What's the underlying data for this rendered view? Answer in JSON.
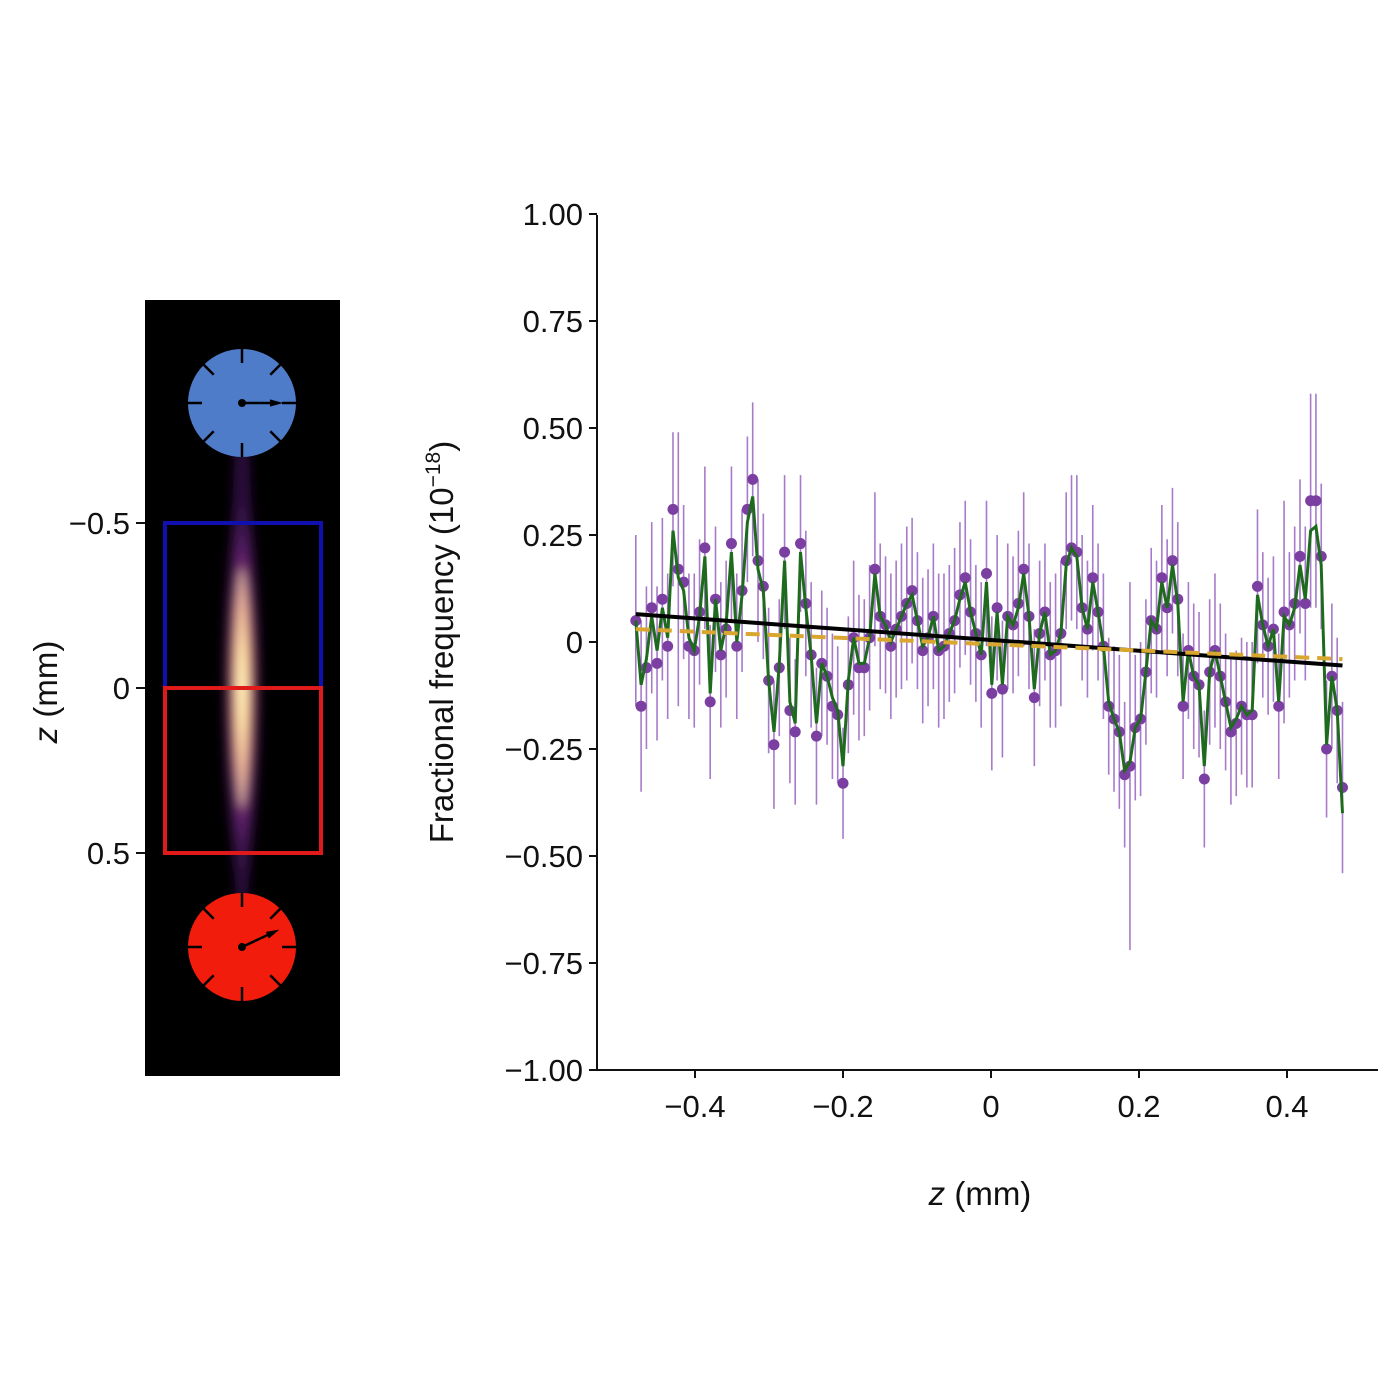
{
  "colors": {
    "points": "#7a3fa0",
    "errorbars": "#a77bc9",
    "smooth": "#1e6b1e",
    "fit": "#000000",
    "dashed": "#d9a730",
    "upper_box": "#1010b0",
    "lower_box": "#e01a1a",
    "upper_clock": "#4f7cc9",
    "lower_clock": "#f21c0c",
    "image_bg": "#000000"
  },
  "left_panel": {
    "ylabel_var": "z",
    "ylabel_unit": " (mm)",
    "ticks": [
      "−0.5",
      "0",
      "0.5"
    ],
    "tick_values": [
      -0.5,
      0,
      0.5
    ],
    "upper_box_range": [
      -0.5,
      0
    ],
    "lower_box_range": [
      0,
      0.5
    ],
    "icons": [
      "upper-clock-icon",
      "lower-clock-icon"
    ]
  },
  "chart_data": {
    "type": "scatter",
    "xlabel_var": "z",
    "xlabel_unit": " (mm)",
    "ylabel_main": "Fractional frequency (10",
    "ylabel_sup": "−18",
    "ylabel_close": ")",
    "xlim": [
      -0.52,
      0.52
    ],
    "ylim": [
      -1.0,
      1.0
    ],
    "xticks": [
      -0.4,
      -0.2,
      0,
      0.2,
      0.4
    ],
    "xtick_labels": [
      "−0.4",
      "−0.2",
      "0",
      "0.2",
      "0.4"
    ],
    "yticks": [
      1.0,
      0.75,
      0.5,
      0.25,
      0,
      -0.25,
      -0.5,
      -0.75,
      -1.0
    ],
    "ytick_labels": [
      "1.00",
      "0.75",
      "0.50",
      "0.25",
      "0",
      "−0.25",
      "−0.50",
      "−0.75",
      "−1.00"
    ],
    "grid": false,
    "x_range": [
      -0.48,
      0.475
    ],
    "y": [
      0.05,
      -0.15,
      -0.06,
      0.08,
      -0.05,
      0.1,
      -0.01,
      0.31,
      0.17,
      0.14,
      -0.01,
      -0.02,
      0.07,
      0.22,
      -0.14,
      0.1,
      -0.03,
      0.03,
      0.23,
      -0.01,
      0.12,
      0.31,
      0.38,
      0.19,
      0.13,
      -0.09,
      -0.24,
      -0.06,
      0.21,
      -0.16,
      -0.21,
      0.23,
      0.09,
      -0.03,
      -0.22,
      -0.05,
      -0.08,
      -0.15,
      -0.17,
      -0.33,
      -0.1,
      0.01,
      -0.06,
      -0.06,
      0.01,
      0.17,
      0.06,
      0.04,
      -0.01,
      0.03,
      0.06,
      0.09,
      0.12,
      0.05,
      -0.02,
      0.01,
      0.06,
      -0.02,
      -0.01,
      0.02,
      0.05,
      0.11,
      0.15,
      0.07,
      0.02,
      -0.03,
      0.16,
      -0.12,
      0.08,
      -0.11,
      0.06,
      0.04,
      0.09,
      0.17,
      0.06,
      -0.13,
      0.02,
      0.07,
      -0.03,
      -0.02,
      0.02,
      0.19,
      0.22,
      0.21,
      0.08,
      0.03,
      0.15,
      0.07,
      -0.01,
      -0.15,
      -0.18,
      -0.21,
      -0.31,
      -0.29,
      -0.2,
      -0.18,
      -0.07,
      0.05,
      0.03,
      0.15,
      0.08,
      0.19,
      0.1,
      -0.15,
      -0.02,
      -0.08,
      -0.1,
      -0.32,
      -0.07,
      -0.02,
      -0.08,
      -0.14,
      -0.21,
      -0.19,
      -0.15,
      -0.17,
      -0.17,
      0.13,
      0.04,
      -0.01,
      0.03,
      -0.15,
      0.07,
      0.04,
      0.09,
      0.2,
      0.09,
      0.33,
      0.33,
      0.2,
      -0.25,
      -0.08,
      -0.16,
      -0.34
    ],
    "errors": [
      0.2,
      0.2,
      0.19,
      0.2,
      0.18,
      0.19,
      0.17,
      0.18,
      0.32,
      0.18,
      0.17,
      0.18,
      0.17,
      0.19,
      0.18,
      0.17,
      0.17,
      0.16,
      0.18,
      0.17,
      0.19,
      0.17,
      0.18,
      0.19,
      0.17,
      0.17,
      0.15,
      0.16,
      0.18,
      0.17,
      0.17,
      0.16,
      0.17,
      0.17,
      0.16,
      0.17,
      0.16,
      0.17,
      0.16,
      0.13,
      0.16,
      0.18,
      0.17,
      0.16,
      0.17,
      0.18,
      0.17,
      0.16,
      0.17,
      0.16,
      0.17,
      0.18,
      0.17,
      0.16,
      0.17,
      0.16,
      0.17,
      0.18,
      0.17,
      0.16,
      0.17,
      0.17,
      0.18,
      0.17,
      0.16,
      0.17,
      0.17,
      0.18,
      0.17,
      0.16,
      0.17,
      0.16,
      0.17,
      0.18,
      0.17,
      0.16,
      0.17,
      0.16,
      0.17,
      0.18,
      0.17,
      0.16,
      0.17,
      0.18,
      0.17,
      0.16,
      0.17,
      0.16,
      0.17,
      0.16,
      0.17,
      0.18,
      0.17,
      0.43,
      0.17,
      0.18,
      0.17,
      0.17,
      0.16,
      0.17,
      0.16,
      0.17,
      0.18,
      0.17,
      0.16,
      0.17,
      0.17,
      0.16,
      0.17,
      0.18,
      0.17,
      0.16,
      0.17,
      0.17,
      0.16,
      0.17,
      0.17,
      0.18,
      0.17,
      0.16,
      0.17,
      0.17,
      0.26,
      0.17,
      0.18,
      0.18,
      0.18,
      0.25,
      0.25,
      0.17,
      0.16,
      0.17,
      0.17,
      0.2
    ],
    "smooth_curve": [
      0.05,
      -0.1,
      -0.04,
      0.06,
      -0.02,
      0.08,
      0.01,
      0.26,
      0.15,
      0.12,
      0.01,
      -0.02,
      0.06,
      0.2,
      -0.12,
      0.1,
      -0.02,
      0.04,
      0.21,
      0.0,
      0.11,
      0.28,
      0.34,
      0.17,
      0.12,
      -0.09,
      -0.21,
      -0.05,
      0.19,
      -0.14,
      -0.19,
      0.21,
      0.08,
      -0.03,
      -0.19,
      -0.05,
      -0.08,
      -0.13,
      -0.16,
      -0.29,
      -0.09,
      0.01,
      -0.05,
      -0.05,
      0.01,
      0.16,
      0.06,
      0.04,
      0.0,
      0.03,
      0.06,
      0.09,
      0.11,
      0.05,
      -0.01,
      0.01,
      0.06,
      -0.02,
      -0.01,
      0.02,
      0.05,
      0.1,
      0.14,
      0.07,
      0.02,
      -0.03,
      0.14,
      -0.1,
      0.07,
      -0.1,
      0.06,
      0.04,
      0.08,
      0.16,
      0.06,
      -0.11,
      0.02,
      0.07,
      -0.03,
      -0.02,
      0.02,
      0.18,
      0.22,
      0.2,
      0.08,
      0.03,
      0.14,
      0.07,
      -0.01,
      -0.14,
      -0.18,
      -0.21,
      -0.3,
      -0.28,
      -0.2,
      -0.18,
      -0.07,
      0.05,
      0.03,
      0.14,
      0.08,
      0.18,
      0.09,
      -0.14,
      -0.02,
      -0.08,
      -0.1,
      -0.29,
      -0.07,
      -0.02,
      -0.08,
      -0.14,
      -0.2,
      -0.18,
      -0.15,
      -0.17,
      -0.16,
      0.11,
      0.04,
      -0.01,
      0.03,
      -0.14,
      0.06,
      0.04,
      0.08,
      0.18,
      0.1,
      0.26,
      0.27,
      0.18,
      -0.24,
      -0.08,
      -0.16,
      -0.4
    ],
    "fit_line": {
      "x": [
        -0.48,
        0.475
      ],
      "y": [
        0.065,
        -0.055
      ]
    },
    "dashed_line": {
      "x": [
        -0.48,
        0.475
      ],
      "y": [
        0.03,
        -0.04
      ]
    }
  }
}
